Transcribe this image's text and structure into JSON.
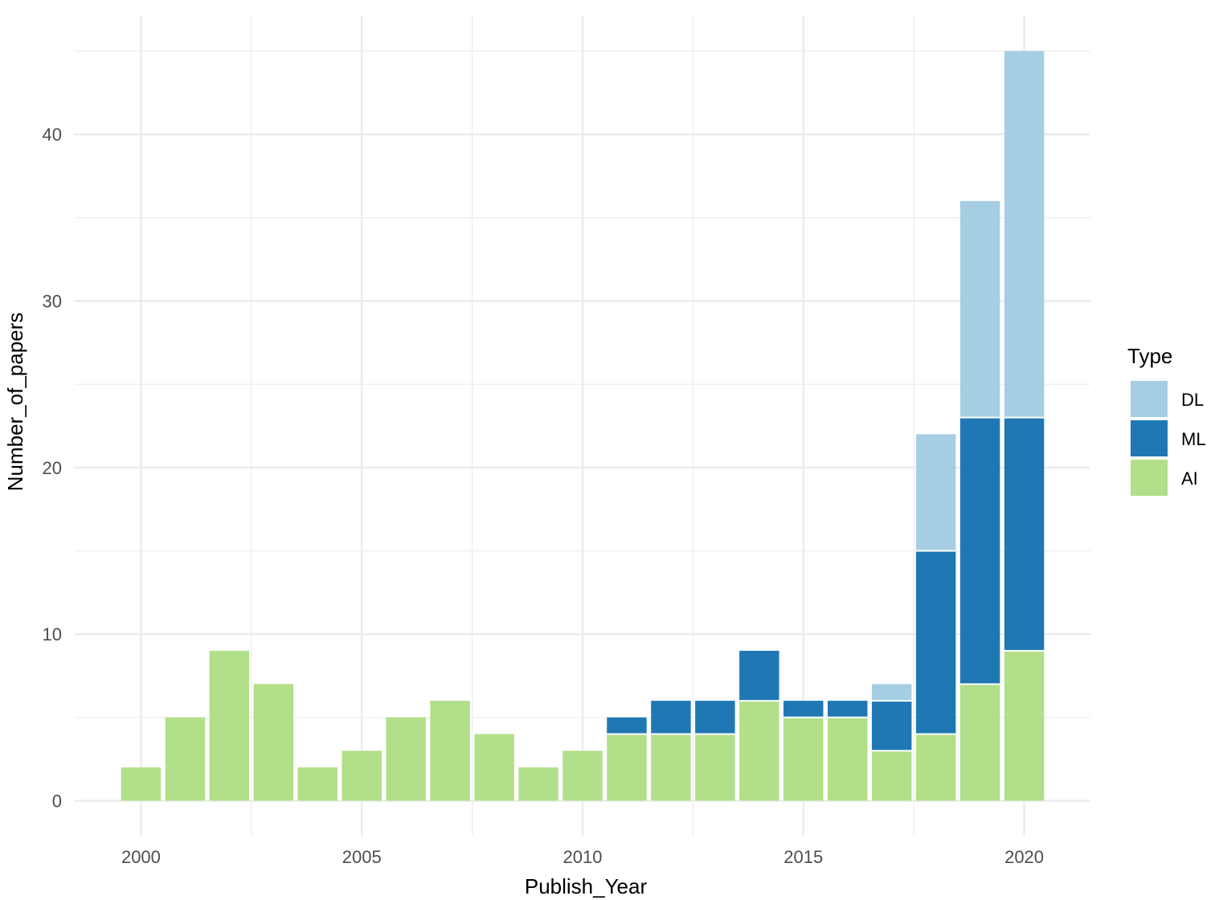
{
  "chart_data": {
    "type": "bar",
    "stacked": true,
    "title": "",
    "xlabel": "Publish_Year",
    "ylabel": "Number_of_papers",
    "x": [
      2000,
      2001,
      2002,
      2003,
      2004,
      2005,
      2006,
      2007,
      2008,
      2009,
      2010,
      2011,
      2012,
      2013,
      2014,
      2015,
      2016,
      2017,
      2018,
      2019,
      2020
    ],
    "series": [
      {
        "name": "AI",
        "color": "#b2df8a",
        "values": [
          2,
          5,
          9,
          7,
          2,
          3,
          5,
          6,
          4,
          2,
          3,
          4,
          4,
          4,
          6,
          5,
          5,
          3,
          4,
          7,
          9
        ]
      },
      {
        "name": "ML",
        "color": "#1f78b4",
        "values": [
          0,
          0,
          0,
          0,
          0,
          0,
          0,
          0,
          0,
          0,
          0,
          1,
          2,
          2,
          3,
          1,
          1,
          3,
          11,
          16,
          14
        ]
      },
      {
        "name": "DL",
        "color": "#a6cee3",
        "values": [
          0,
          0,
          0,
          0,
          0,
          0,
          0,
          0,
          0,
          0,
          0,
          0,
          0,
          0,
          0,
          0,
          0,
          1,
          7,
          13,
          22
        ]
      }
    ],
    "xticks": [
      "2000",
      "2005",
      "2010",
      "2015",
      "2020"
    ],
    "yticks": [
      "0",
      "10",
      "20",
      "30",
      "40"
    ],
    "xlim": [
      1998.5,
      2021.5
    ],
    "ylim": [
      -2.1,
      47.1
    ],
    "grid": true,
    "legend": {
      "title": "Type",
      "placement": "right",
      "entries": [
        {
          "label": "DL",
          "color": "#a6cee3"
        },
        {
          "label": "ML",
          "color": "#1f78b4"
        },
        {
          "label": "AI",
          "color": "#b2df8a"
        }
      ]
    }
  }
}
